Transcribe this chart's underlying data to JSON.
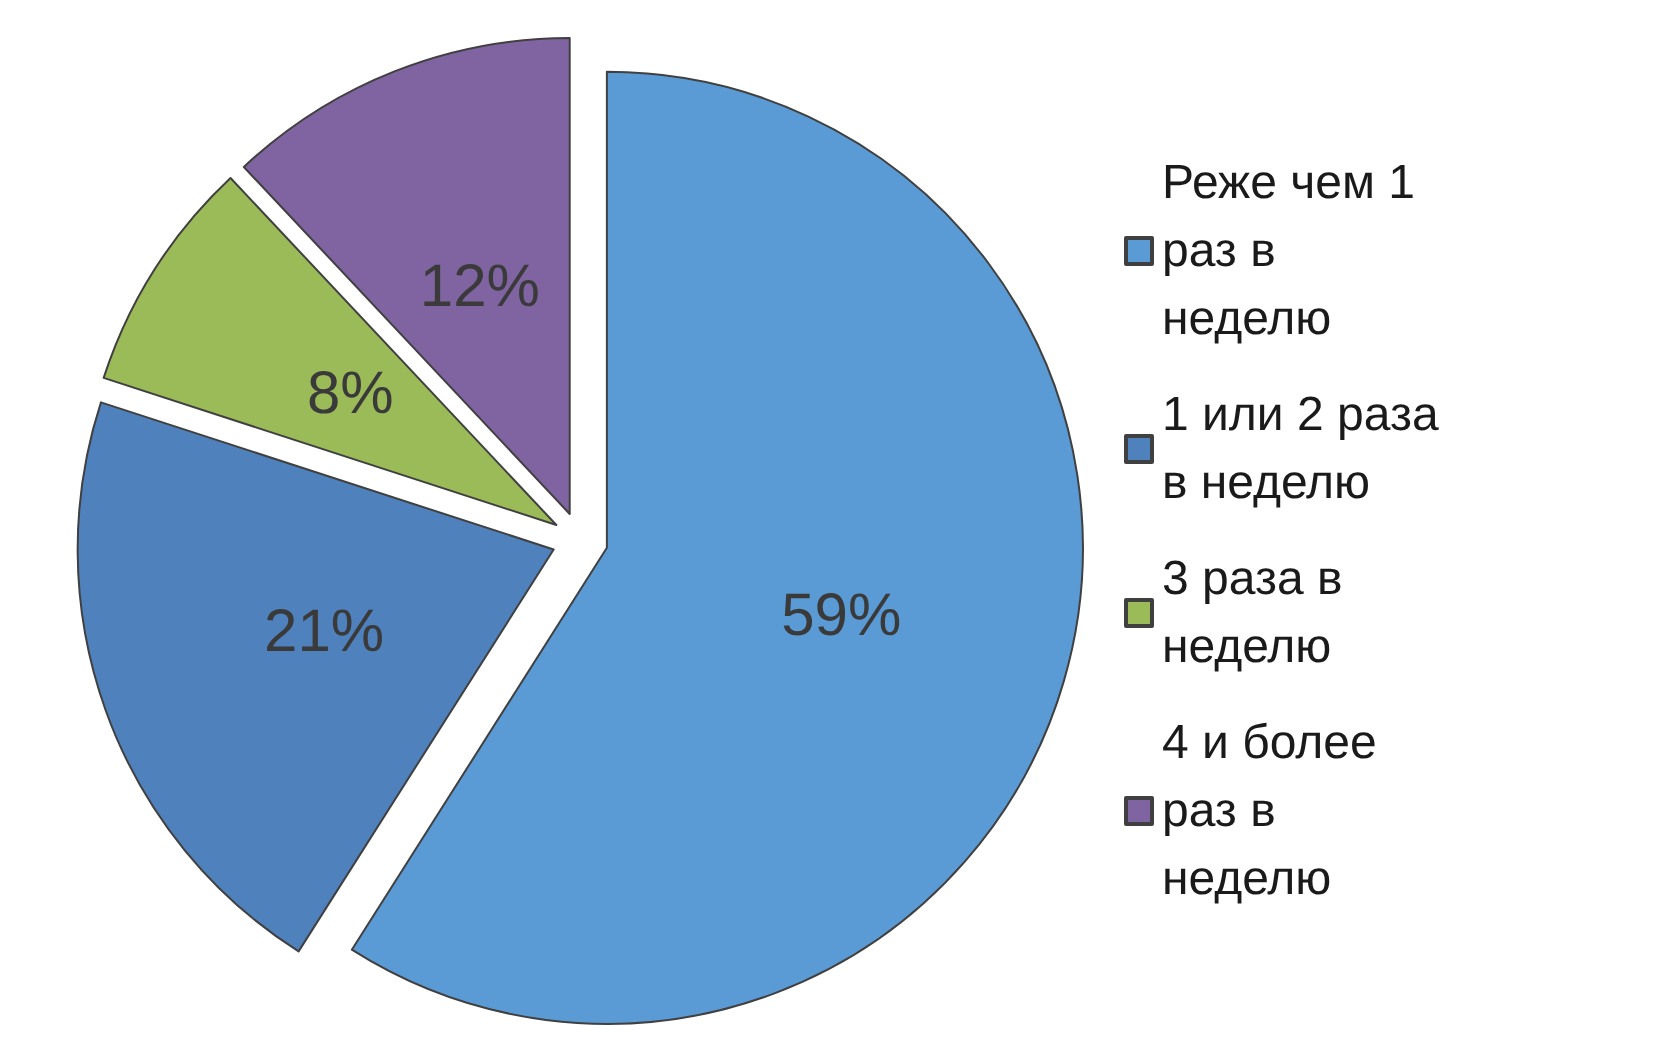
{
  "chart_data": {
    "type": "pie",
    "categories": [
      "Реже чем 1 раз в неделю",
      "1 или 2 раза в неделю",
      "3 раза в неделю",
      "4 и более раз в неделю"
    ],
    "values": [
      59,
      21,
      8,
      12
    ],
    "colors": [
      "#5b9bd5",
      "#4f81bd",
      "#9bbb59",
      "#8064a2"
    ],
    "value_labels": [
      "59%",
      "21%",
      "8%",
      "12%"
    ],
    "legend": "right"
  }
}
